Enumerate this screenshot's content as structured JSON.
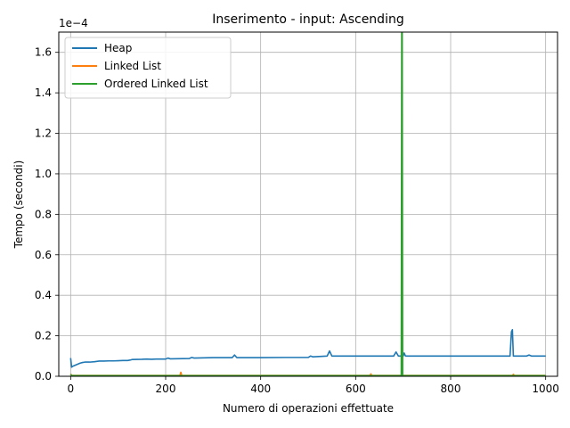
{
  "chart_data": {
    "type": "line",
    "title": "Inserimento - input: Ascending",
    "xlabel": "Numero di operazioni effettuate",
    "ylabel": "Tempo (secondi)",
    "y_offset_label": "1e−4",
    "xlim": [
      -25,
      1025
    ],
    "ylim": [
      0,
      1.7
    ],
    "x_ticks": [
      0,
      200,
      400,
      600,
      800,
      1000
    ],
    "y_ticks": [
      0.0,
      0.2,
      0.4,
      0.6,
      0.8,
      1.0,
      1.2,
      1.4,
      1.6
    ],
    "x_tick_labels": [
      "0",
      "200",
      "400",
      "600",
      "800",
      "1000"
    ],
    "y_tick_labels": [
      "0.0",
      "0.2",
      "0.4",
      "0.6",
      "0.8",
      "1.0",
      "1.2",
      "1.4",
      "1.6"
    ],
    "grid": true,
    "legend_position": "top-left",
    "series": [
      {
        "name": "Heap",
        "color": "#1f77b4",
        "x": [
          0,
          2,
          5,
          10,
          15,
          20,
          25,
          30,
          40,
          50,
          60,
          70,
          80,
          90,
          100,
          110,
          120,
          125,
          130,
          150,
          160,
          170,
          180,
          200,
          205,
          210,
          250,
          255,
          260,
          300,
          340,
          345,
          350,
          400,
          450,
          460,
          500,
          505,
          510,
          540,
          545,
          550,
          600,
          650,
          680,
          685,
          690,
          700,
          702,
          705,
          750,
          780,
          800,
          850,
          900,
          925,
          928,
          930,
          932,
          935,
          960,
          965,
          970,
          1000
        ],
        "y": [
          0.09,
          0.045,
          0.05,
          0.055,
          0.06,
          0.065,
          0.068,
          0.07,
          0.07,
          0.072,
          0.075,
          0.075,
          0.076,
          0.076,
          0.077,
          0.078,
          0.078,
          0.08,
          0.083,
          0.084,
          0.085,
          0.084,
          0.085,
          0.085,
          0.09,
          0.086,
          0.088,
          0.093,
          0.09,
          0.092,
          0.092,
          0.105,
          0.092,
          0.092,
          0.093,
          0.093,
          0.093,
          0.1,
          0.096,
          0.1,
          0.125,
          0.1,
          0.1,
          0.1,
          0.1,
          0.12,
          0.1,
          0.1,
          0.115,
          0.1,
          0.1,
          0.1,
          0.1,
          0.1,
          0.1,
          0.1,
          0.22,
          0.23,
          0.1,
          0.1,
          0.1,
          0.105,
          0.1,
          0.1
        ]
      },
      {
        "name": "Linked List",
        "color": "#ff7f0e",
        "x": [
          0,
          2,
          5,
          230,
          232,
          234,
          240,
          630,
          632,
          634,
          640,
          930,
          932,
          934,
          1000
        ],
        "y": [
          0.012,
          0.005,
          0.004,
          0.004,
          0.02,
          0.004,
          0.004,
          0.004,
          0.012,
          0.004,
          0.004,
          0.004,
          0.01,
          0.004,
          0.004
        ]
      },
      {
        "name": "Ordered Linked List",
        "color": "#2ca02c",
        "x": [
          0,
          2,
          5,
          696,
          697,
          698,
          699,
          700,
          1000
        ],
        "y": [
          0.01,
          0.003,
          0.003,
          0.003,
          1.72,
          1.72,
          0.003,
          0.003,
          0.003
        ]
      }
    ]
  }
}
